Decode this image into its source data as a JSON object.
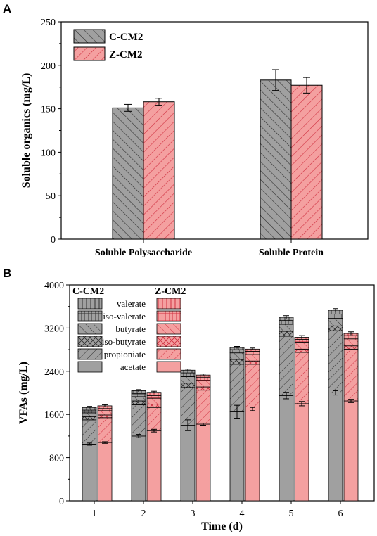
{
  "chart_data": [
    {
      "panel": "A",
      "type": "bar",
      "ylabel": "Soluble organics (mg/L)",
      "ylim": [
        0,
        250
      ],
      "yticks": [
        0,
        50,
        100,
        150,
        200,
        250
      ],
      "categories": [
        "Soluble Polysaccharide",
        "Soluble Protein"
      ],
      "series": [
        {
          "name": "C-CM2",
          "values": [
            151,
            183
          ],
          "errors": [
            4,
            12
          ],
          "color": "#a0a0a0",
          "pattern": "hatch-backslash"
        },
        {
          "name": "Z-CM2",
          "values": [
            158,
            177
          ],
          "errors": [
            4,
            9
          ],
          "color": "#f4a0a0",
          "pattern": "hatch-slash"
        }
      ],
      "legend_position": "top-left",
      "grid": false
    },
    {
      "panel": "B",
      "type": "bar",
      "stacked": true,
      "xlabel": "Time (d)",
      "ylabel": "VFAs (mg/L)",
      "ylim": [
        0,
        4000
      ],
      "yticks": [
        0,
        800,
        1600,
        2400,
        3200,
        4000
      ],
      "categories": [
        "1",
        "2",
        "3",
        "4",
        "5",
        "6"
      ],
      "groups": [
        "C-CM2",
        "Z-CM2"
      ],
      "components": [
        "acetate",
        "propionate",
        "iso-butyrate",
        "butyrate",
        "iso-valerate",
        "valerate"
      ],
      "component_legend_order": [
        "valerate",
        "iso-valerate",
        "butyrate",
        "iso-butyrate",
        "propioniate",
        "acetate"
      ],
      "series": [
        {
          "name": "C-CM2",
          "color": "#a0a0a0",
          "acetate": [
            1050,
            1200,
            1400,
            1650,
            1950,
            2000
          ],
          "propionate": [
            450,
            580,
            700,
            880,
            1100,
            1150
          ],
          "iso-butyrate": [
            60,
            70,
            80,
            90,
            90,
            90
          ],
          "butyrate": [
            70,
            80,
            120,
            120,
            130,
            140
          ],
          "iso-valerate": [
            50,
            60,
            70,
            60,
            70,
            80
          ],
          "valerate": [
            50,
            50,
            50,
            40,
            60,
            70
          ],
          "totals": [
            1730,
            2040,
            2420,
            2840,
            3400,
            3530
          ],
          "acetate_err": [
            20,
            30,
            100,
            120,
            60,
            40
          ],
          "total_err": [
            20,
            20,
            20,
            20,
            30,
            30
          ]
        },
        {
          "name": "Z-CM2",
          "color": "#f4a0a0",
          "acetate": [
            1080,
            1300,
            1420,
            1700,
            1800,
            1850
          ],
          "propionate": [
            460,
            430,
            630,
            830,
            950,
            960
          ],
          "iso-butyrate": [
            50,
            60,
            60,
            60,
            60,
            60
          ],
          "butyrate": [
            80,
            110,
            120,
            120,
            130,
            130
          ],
          "iso-valerate": [
            40,
            50,
            60,
            60,
            50,
            60
          ],
          "valerate": [
            50,
            60,
            40,
            40,
            40,
            40
          ],
          "totals": [
            1760,
            2010,
            2330,
            2810,
            3030,
            3100
          ],
          "acetate_err": [
            15,
            25,
            20,
            30,
            40,
            30
          ],
          "total_err": [
            20,
            20,
            20,
            20,
            30,
            30
          ]
        }
      ],
      "legend_position": "top-left",
      "grid": false
    }
  ]
}
